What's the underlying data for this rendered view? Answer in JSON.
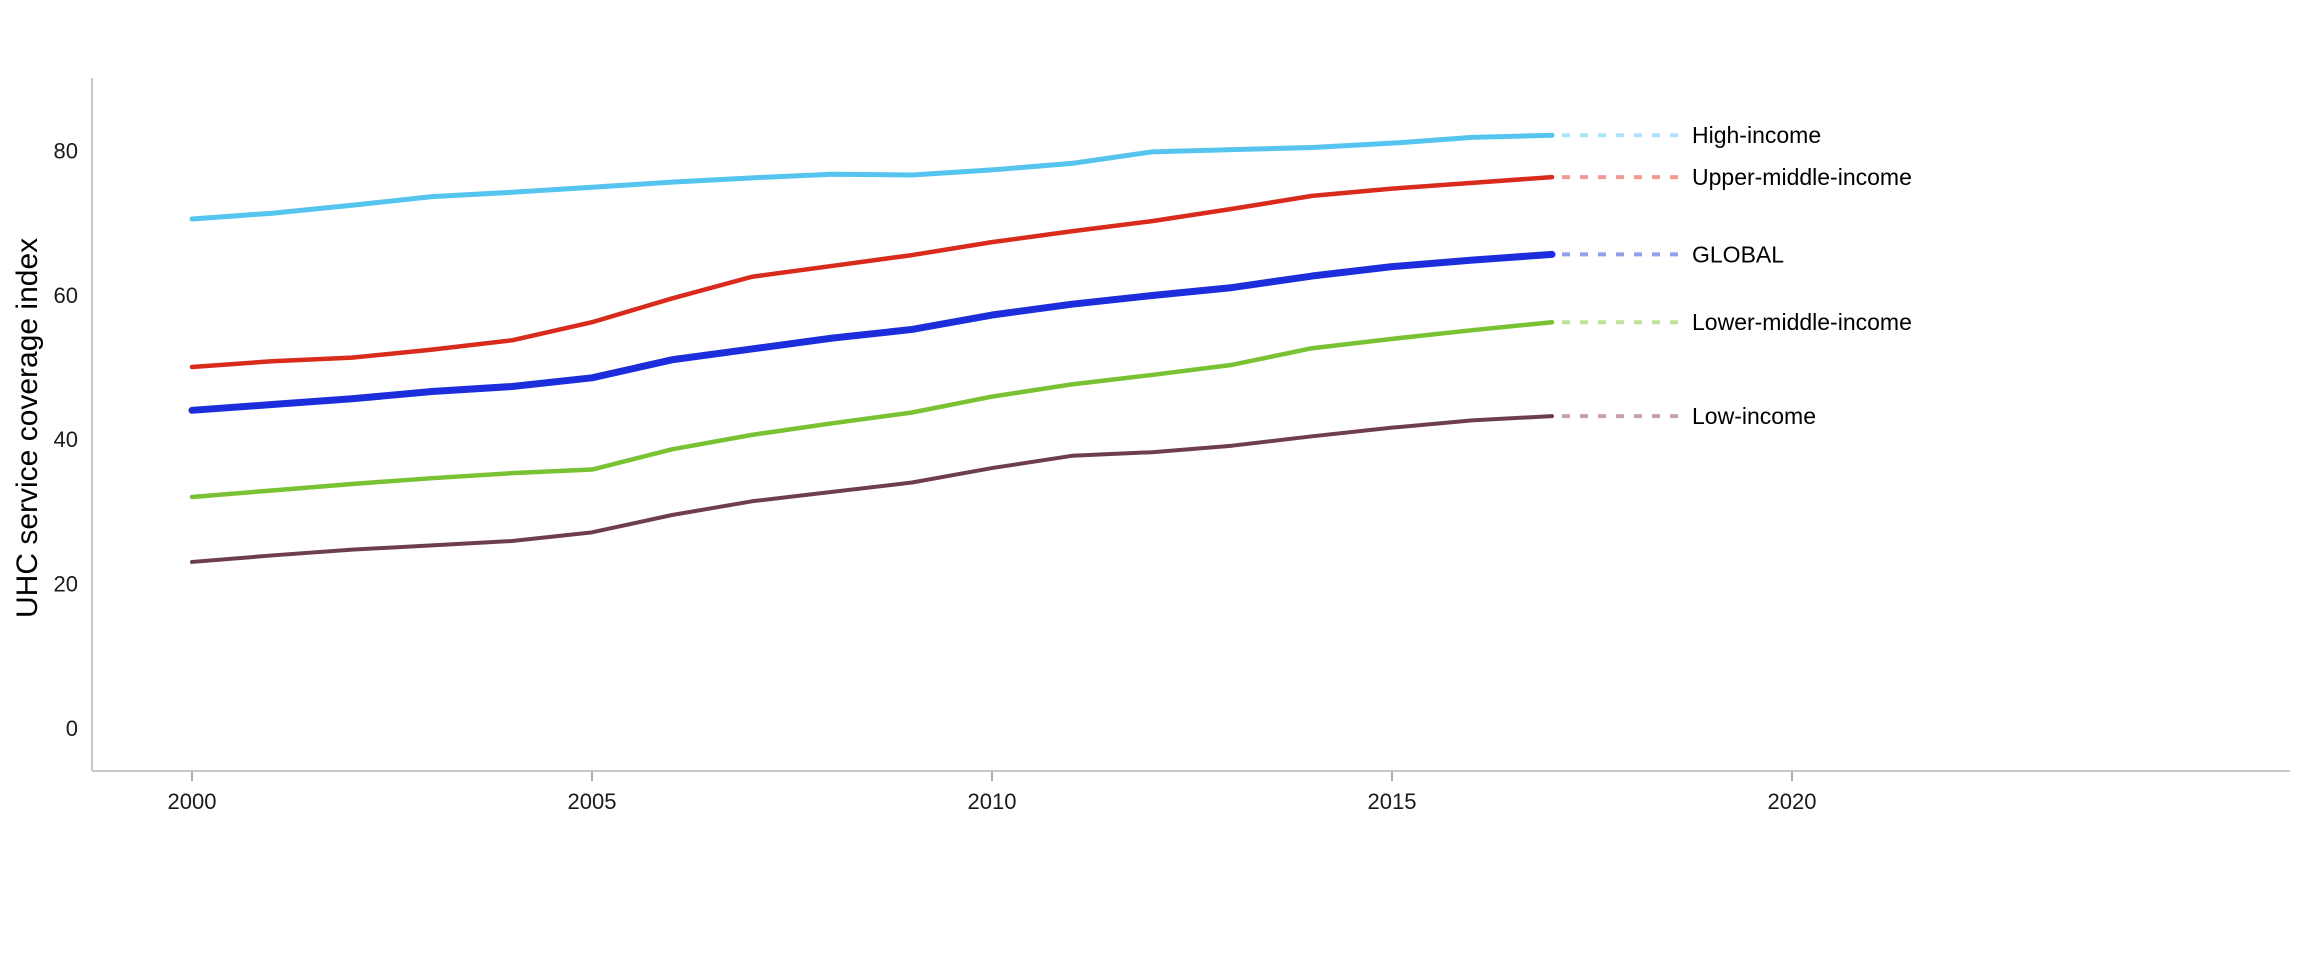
{
  "page": {
    "background": "#ffffff"
  },
  "colors": {
    "axis_line": "#c8c8c8",
    "tick_mark": "#adadad",
    "tick_text": "#1a1a1a",
    "label_text": "#000000"
  },
  "chart_data": {
    "type": "line",
    "title": "",
    "xlabel": "",
    "ylabel": "UHC service coverage index",
    "x_ticks": [
      2000,
      2005,
      2010,
      2015,
      2020
    ],
    "y_ticks": [
      0,
      20,
      40,
      60,
      80
    ],
    "x_range": [
      1998.75,
      2026.2
    ],
    "ylim": [
      -6,
      90
    ],
    "grid": false,
    "legend_position": "direct-labels-right",
    "years": [
      2000,
      2001,
      2002,
      2003,
      2004,
      2005,
      2006,
      2007,
      2008,
      2009,
      2010,
      2011,
      2012,
      2013,
      2014,
      2015,
      2016,
      2017
    ],
    "series": [
      {
        "name": "high-income",
        "label": "High-income",
        "color": "#55c5f0",
        "leader_color": "#abe3f8",
        "line_width": 5,
        "values": [
          70.5,
          71.3,
          72.4,
          73.6,
          74.2,
          74.9,
          75.6,
          76.2,
          76.7,
          76.6,
          77.3,
          78.2,
          79.8,
          80.1,
          80.4,
          81.0,
          81.8,
          82.1
        ]
      },
      {
        "name": "upper-middle-income",
        "label": "Upper-middle-income",
        "color": "#d92b1c",
        "leader_color": "#f29b92",
        "line_width": 4.5,
        "values": [
          50.0,
          50.8,
          51.3,
          52.4,
          53.7,
          56.2,
          59.5,
          62.5,
          64.0,
          65.5,
          67.3,
          68.8,
          70.2,
          71.9,
          73.7,
          74.7,
          75.5,
          76.3
        ]
      },
      {
        "name": "global",
        "label": "GLOBAL",
        "color": "#1c2edc",
        "leader_color": "#929fea",
        "line_width": 7,
        "values": [
          44.0,
          44.8,
          45.6,
          46.6,
          47.3,
          48.5,
          51.0,
          52.5,
          54.0,
          55.2,
          57.2,
          58.7,
          59.9,
          61.0,
          62.6,
          63.9,
          64.8,
          65.6
        ]
      },
      {
        "name": "lower-middle-income",
        "label": "Lower-middle-income",
        "color": "#79c233",
        "leader_color": "#bde499",
        "line_width": 4.5,
        "values": [
          32.0,
          32.9,
          33.8,
          34.6,
          35.3,
          35.8,
          38.6,
          40.6,
          42.2,
          43.7,
          45.9,
          47.6,
          48.9,
          50.3,
          52.6,
          53.9,
          55.1,
          56.2
        ]
      },
      {
        "name": "low-income",
        "label": "Low-income",
        "color": "#6e3e4a",
        "leader_color": "#c7a1aa",
        "line_width": 4,
        "values": [
          23.0,
          23.9,
          24.7,
          25.3,
          25.9,
          27.1,
          29.5,
          31.4,
          32.7,
          34.0,
          36.0,
          37.7,
          38.2,
          39.1,
          40.4,
          41.6,
          42.6,
          43.2
        ]
      }
    ]
  }
}
